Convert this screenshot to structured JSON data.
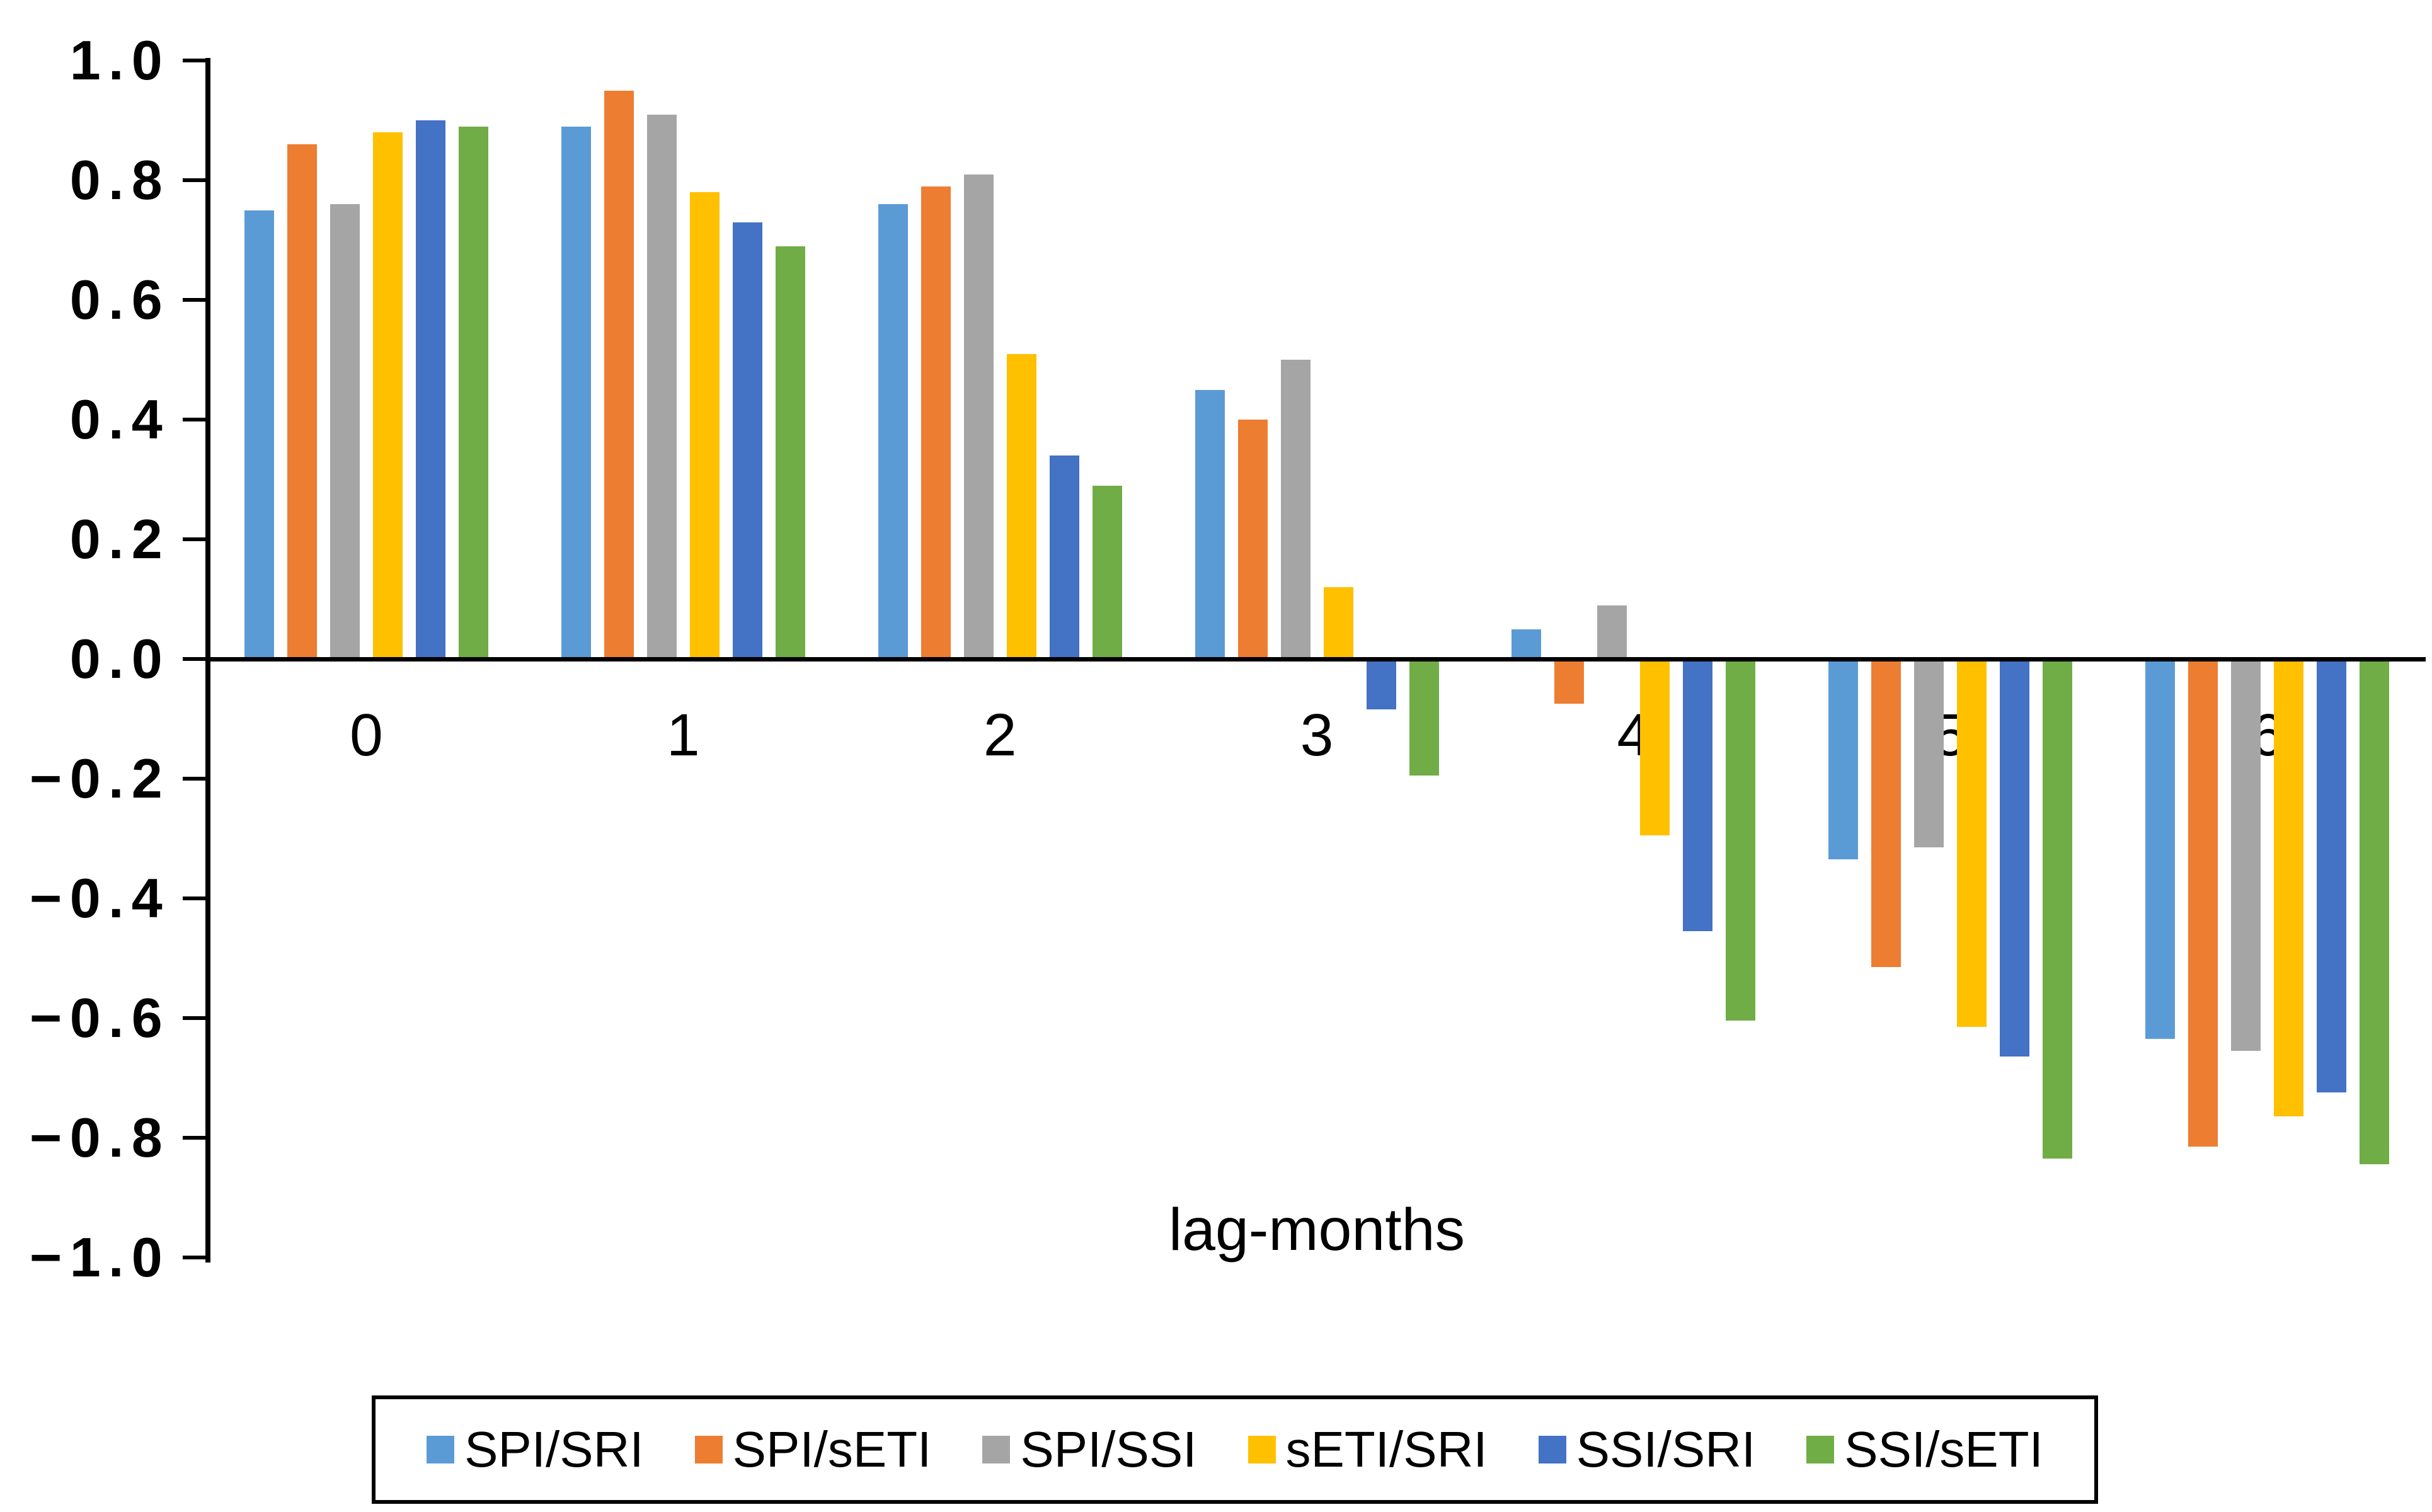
{
  "chart_data": {
    "type": "bar",
    "title": "",
    "xlabel": "lag-months",
    "ylabel": "",
    "categories": [
      "0",
      "1",
      "2",
      "3",
      "4",
      "5",
      "6"
    ],
    "series": [
      {
        "name": "SPI/SRI",
        "color": "#5B9BD5",
        "values": [
          0.75,
          0.89,
          0.76,
          0.45,
          0.05,
          -0.33,
          -0.63
        ]
      },
      {
        "name": "SPI/sETI",
        "color": "#ED7D31",
        "values": [
          0.86,
          0.95,
          0.79,
          0.4,
          -0.07,
          -0.51,
          -0.81
        ]
      },
      {
        "name": "SPI/SSI",
        "color": "#A5A5A5",
        "values": [
          0.76,
          0.91,
          0.81,
          0.5,
          0.09,
          -0.31,
          -0.65
        ]
      },
      {
        "name": "sETI/SRI",
        "color": "#FFC000",
        "values": [
          0.88,
          0.78,
          0.51,
          0.12,
          -0.29,
          -0.61,
          -0.76
        ]
      },
      {
        "name": "SSI/SRI",
        "color": "#4472C4",
        "values": [
          0.9,
          0.73,
          0.34,
          -0.08,
          -0.45,
          -0.66,
          -0.72
        ]
      },
      {
        "name": "SSI/sETI",
        "color": "#70AD47",
        "values": [
          0.89,
          0.69,
          0.29,
          -0.19,
          -0.6,
          -0.83,
          -0.84
        ]
      }
    ],
    "ylim": [
      -1.0,
      1.0
    ],
    "ytick_step": 0.2,
    "yticks": [
      "1.0",
      "0.8",
      "0.6",
      "0.4",
      "0.2",
      "0.0",
      "−0.2",
      "−0.4",
      "−0.6",
      "−0.8",
      "−1.0"
    ],
    "grid": false,
    "legend_position": "bottom",
    "axis_color": "#000000"
  }
}
